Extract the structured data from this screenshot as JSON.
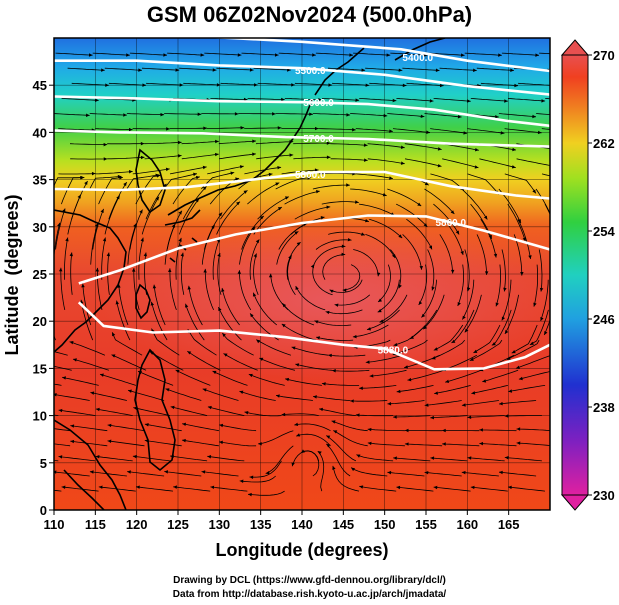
{
  "title": "GSM 06Z02Nov2024 (500.0hPa)",
  "xaxis": {
    "label": "Longitude (degrees)",
    "range": [
      110,
      170
    ],
    "ticks": [
      110,
      115,
      120,
      125,
      130,
      135,
      140,
      145,
      150,
      155,
      160,
      165
    ]
  },
  "yaxis": {
    "label": "Latitude  (degrees)",
    "range": [
      0,
      50
    ],
    "ticks": [
      0,
      5,
      10,
      15,
      20,
      25,
      30,
      35,
      40,
      45
    ]
  },
  "colorbar": {
    "range": [
      230,
      270
    ],
    "labels": [
      270,
      262,
      254,
      246,
      238,
      230
    ],
    "colors": [
      "#e0208a",
      "#8020c0",
      "#2040d0",
      "#20a0e0",
      "#20d0c0",
      "#30d040",
      "#a0e020",
      "#f0d020",
      "#f08020",
      "#f04020",
      "#e85050"
    ]
  },
  "contours": [
    {
      "label": "5400.0",
      "lon": [
        110,
        125,
        140,
        152,
        160,
        170
      ],
      "lat": [
        50.5,
        50.3,
        49.6,
        48.8,
        47.6,
        46.5
      ],
      "label_lon": 154,
      "label_lat": 48.0
    },
    {
      "label": "5500.0",
      "lon": [
        110,
        120,
        130,
        140,
        150,
        160,
        170
      ],
      "lat": [
        47.6,
        47.6,
        47.1,
        46.8,
        46.1,
        44.9,
        44.0
      ],
      "label_lon": 141,
      "label_lat": 46.6
    },
    {
      "label": "5600.0",
      "lon": [
        110,
        120,
        130,
        140,
        148,
        156,
        165,
        170
      ],
      "lat": [
        43.8,
        43.6,
        43.3,
        43.2,
        43.0,
        42.4,
        41.2,
        40.7
      ],
      "label_lon": 142,
      "label_lat": 43.2
    },
    {
      "label": "5700.0",
      "lon": [
        110,
        118,
        128,
        138,
        148,
        158,
        170
      ],
      "lat": [
        40.2,
        40.0,
        39.9,
        39.5,
        39.3,
        38.8,
        38.5
      ],
      "label_lon": 142,
      "label_lat": 39.4
    },
    {
      "label": "5800.0",
      "lon": [
        110,
        118,
        126,
        134,
        142,
        150,
        158,
        166,
        170
      ],
      "lat": [
        34.0,
        33.9,
        34.2,
        35.0,
        35.8,
        35.8,
        34.3,
        33.3,
        33.0
      ],
      "label_lon": 141,
      "label_lat": 35.6
    },
    {
      "label": "5860.0",
      "lon": [
        113,
        118,
        125,
        132,
        140,
        148,
        155,
        162,
        168,
        170
      ],
      "lat": [
        24.0,
        25.4,
        27.7,
        29.2,
        30.4,
        31.2,
        31.1,
        29.6,
        28.1,
        27.6
      ],
      "label_lon": 158,
      "label_lat": 30.5
    },
    {
      "label": "5880.0",
      "lon": [
        113,
        116,
        122,
        130,
        138,
        145,
        150,
        156,
        162,
        167,
        170
      ],
      "lat": [
        22.0,
        19.5,
        18.8,
        19.0,
        18.3,
        17.5,
        17.1,
        14.9,
        15.0,
        16.2,
        17.5
      ],
      "label_lon": 151,
      "label_lat": 17.0
    }
  ],
  "credits": [
    "Drawing by DCL (https://www.gfd-dennou.org/library/dcl/)",
    "Data from http://database.rish.kyoto-u.ac.jp/arch/jmadata/"
  ]
}
